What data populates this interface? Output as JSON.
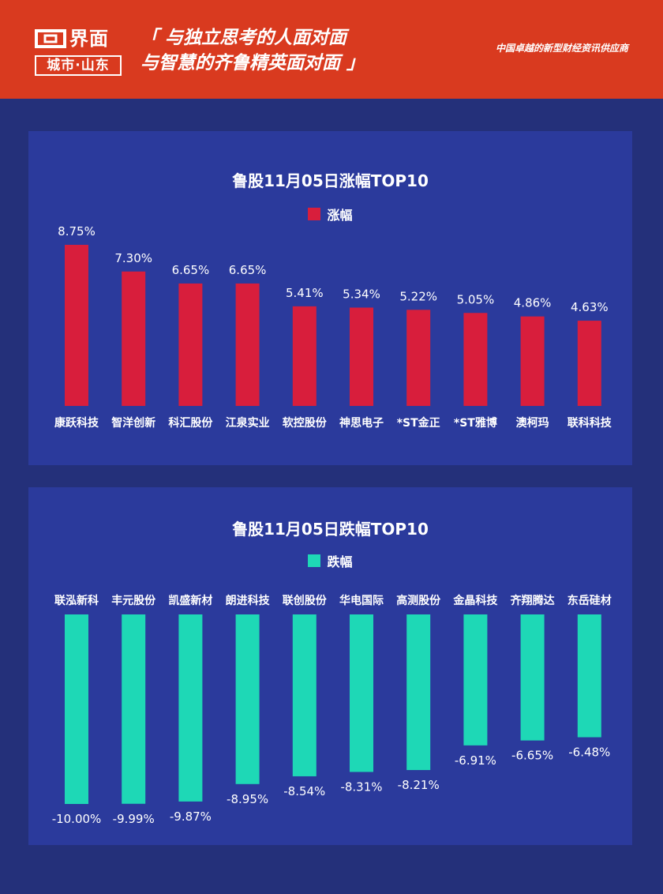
{
  "header": {
    "logo_name": "界面",
    "logo_sub": "城市·山东",
    "slogan_line1": "「 与独立思考的人面对面",
    "slogan_line2": "与智慧的齐鲁精英面对面 」",
    "tagline": "中国卓越的新型财经资讯供应商"
  },
  "colors": {
    "header_bg": "#d93a1f",
    "page_bg": "#24307a",
    "panel_bg": "#2b3a9c",
    "rise_bar": "#d81e3c",
    "fall_bar": "#1ed8b6"
  },
  "chart_data": [
    {
      "type": "bar",
      "title": "鲁股11月05日涨幅TOP10",
      "legend": "涨幅",
      "legend_position": "top-center",
      "categories": [
        "康跃科技",
        "智洋创新",
        "科汇股份",
        "江泉实业",
        "软控股份",
        "神思电子",
        "*ST金正",
        "*ST雅博",
        "澳柯玛",
        "联科科技"
      ],
      "values": [
        8.75,
        7.3,
        6.65,
        6.65,
        5.41,
        5.34,
        5.22,
        5.05,
        4.86,
        4.63
      ],
      "labels": [
        "8.75%",
        "7.30%",
        "6.65%",
        "6.65%",
        "5.41%",
        "5.34%",
        "5.22%",
        "5.05%",
        "4.86%",
        "4.63%"
      ],
      "ylim": [
        0,
        8.75
      ],
      "grid": false
    },
    {
      "type": "bar",
      "title": "鲁股11月05日跌幅TOP10",
      "legend": "跌幅",
      "legend_position": "top-center",
      "categories": [
        "联泓新科",
        "丰元股份",
        "凯盛新材",
        "朗进科技",
        "联创股份",
        "华电国际",
        "高测股份",
        "金晶科技",
        "齐翔腾达",
        "东岳硅材"
      ],
      "values": [
        -10.0,
        -9.99,
        -9.87,
        -8.95,
        -8.54,
        -8.31,
        -8.21,
        -6.91,
        -6.65,
        -6.48
      ],
      "labels": [
        "-10.00%",
        "-9.99%",
        "-9.87%",
        "-8.95%",
        "-8.54%",
        "-8.31%",
        "-8.21%",
        "-6.91%",
        "-6.65%",
        "-6.48%"
      ],
      "ylim": [
        -10.0,
        0
      ],
      "grid": false
    }
  ]
}
